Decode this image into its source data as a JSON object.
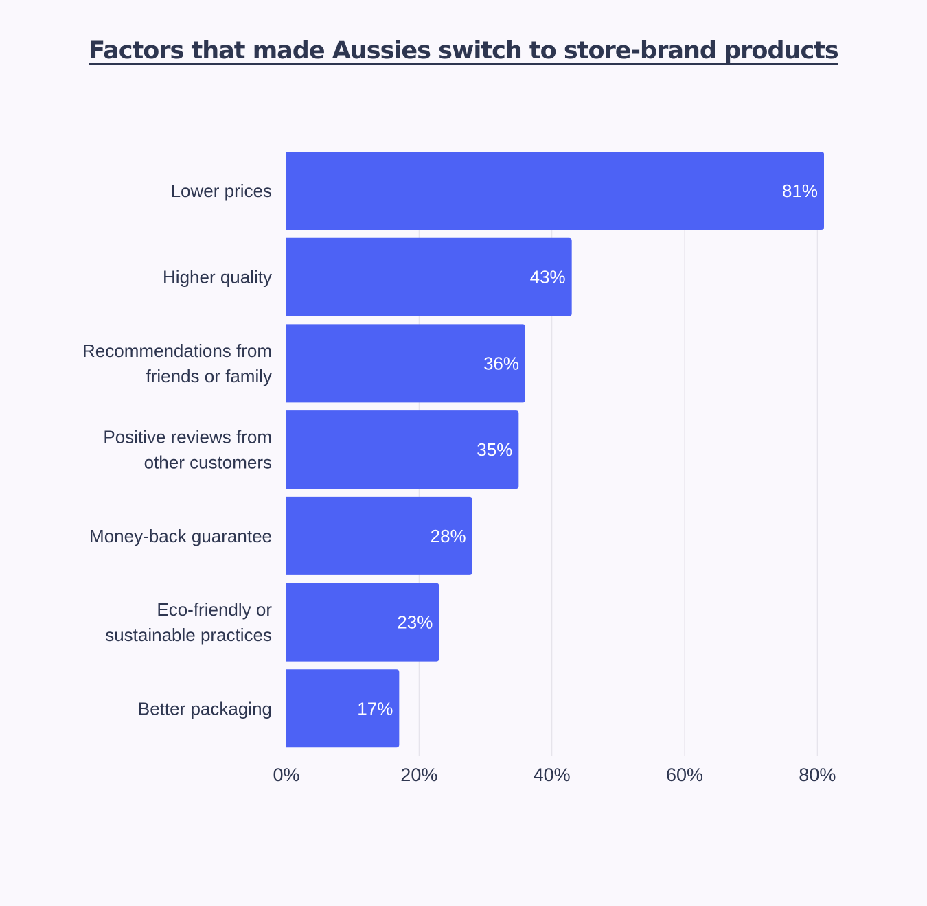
{
  "chart_data": {
    "type": "bar",
    "orientation": "horizontal",
    "title": "Factors that made Aussies switch to store-brand products",
    "categories": [
      [
        "Lower prices"
      ],
      [
        "Higher quality"
      ],
      [
        "Recommendations from",
        "friends or family"
      ],
      [
        "Positive reviews from",
        "other customers"
      ],
      [
        "Money-back guarantee"
      ],
      [
        "Eco-friendly or",
        "sustainable practices"
      ],
      [
        "Better packaging"
      ]
    ],
    "values": [
      81,
      43,
      36,
      35,
      28,
      23,
      17
    ],
    "value_labels": [
      "81%",
      "43%",
      "36%",
      "35%",
      "28%",
      "23%",
      "17%"
    ],
    "xticks": [
      0,
      20,
      40,
      60,
      80
    ],
    "xtick_labels": [
      "0%",
      "20%",
      "40%",
      "60%",
      "80%"
    ],
    "xlim": [
      0,
      81
    ],
    "grid": true,
    "bar_color": "#4d62f5"
  }
}
